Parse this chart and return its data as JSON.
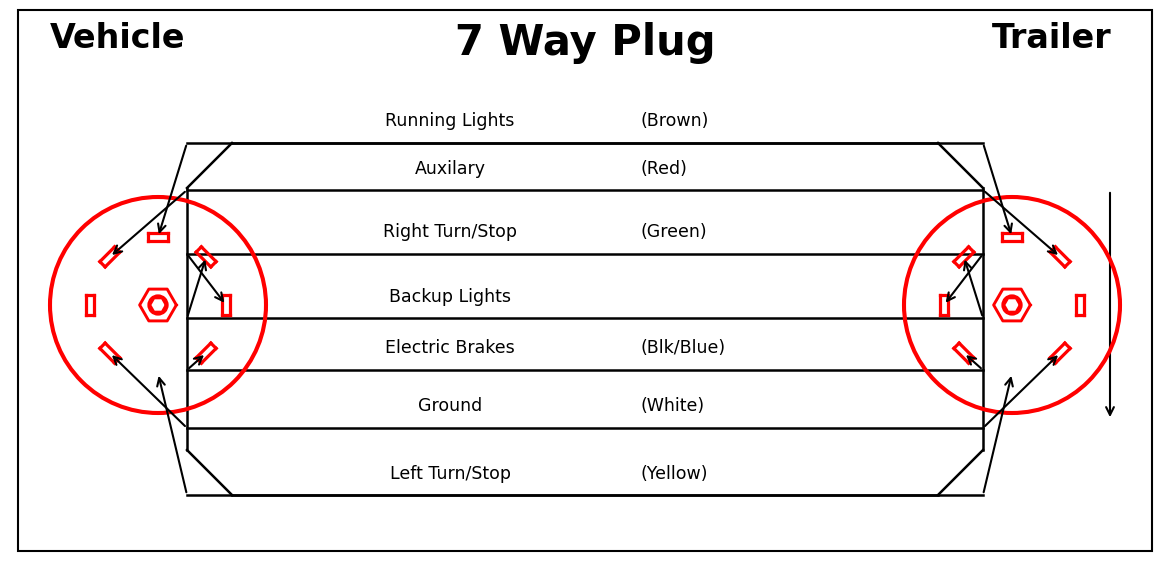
{
  "title": "7 Way Plug",
  "label_vehicle": "Vehicle",
  "label_trailer": "Trailer",
  "bg_color": "#ffffff",
  "line_color": "#000000",
  "red_color": "#ff0000",
  "figsize": [
    11.7,
    5.61
  ],
  "dpi": 100,
  "wire_rows": [
    {
      "label": "Running Lights",
      "color_label": "(Brown)"
    },
    {
      "label": "Auxilary",
      "color_label": "(Red)"
    },
    {
      "label": "Right Turn/Stop",
      "color_label": "(Green)"
    },
    {
      "label": "Backup Lights",
      "color_label": ""
    },
    {
      "label": "Electric Brakes",
      "color_label": "(Blk/Blue)"
    },
    {
      "label": "Ground",
      "color_label": "(White)"
    },
    {
      "label": "Left Turn/Stop",
      "color_label": "(Yellow)"
    }
  ]
}
